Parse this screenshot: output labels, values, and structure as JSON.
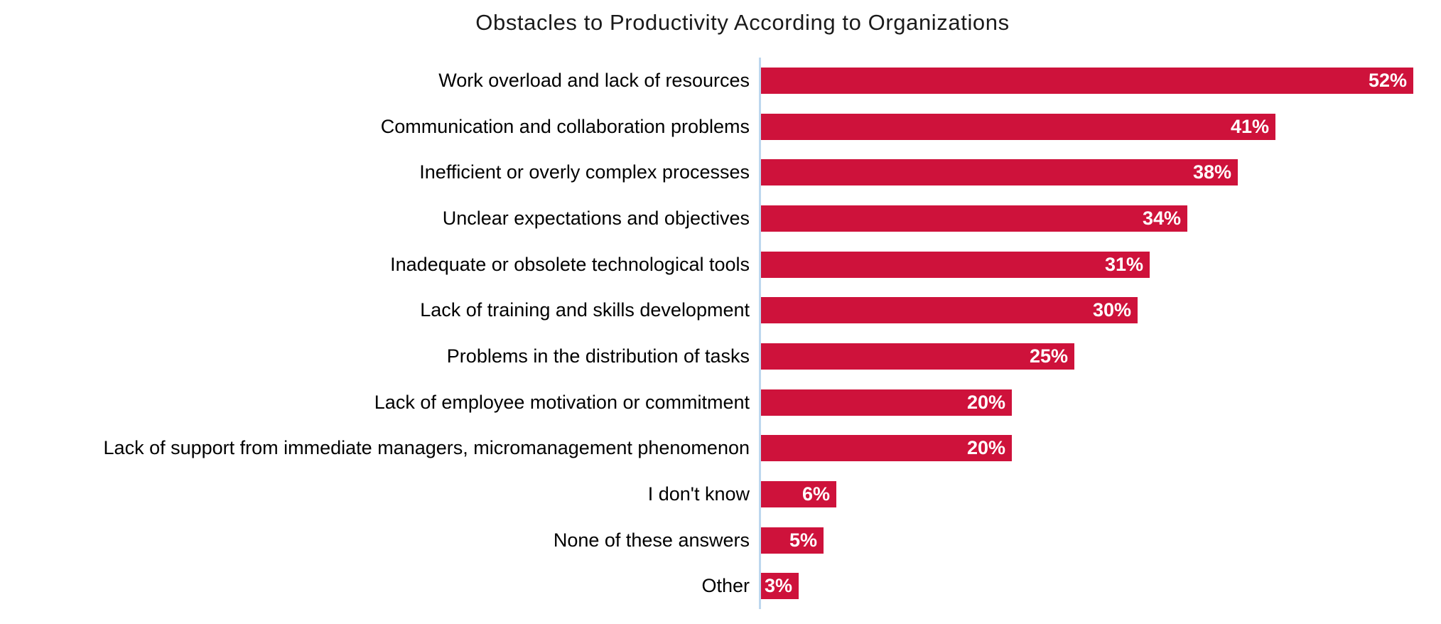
{
  "chart_data": {
    "type": "bar",
    "orientation": "horizontal",
    "title": "Obstacles to Productivity According to Organizations",
    "categories": [
      "Work overload and lack of resources",
      "Communication and collaboration problems",
      "Inefficient or overly complex processes",
      "Unclear expectations and objectives",
      "Inadequate or obsolete technological tools",
      "Lack of training and skills development",
      "Problems in the distribution of tasks",
      "Lack of employee motivation or commitment",
      "Lack of support from immediate managers, micromanagement phenomenon",
      "I don't know",
      "None of these answers",
      "Other"
    ],
    "values": [
      52,
      41,
      38,
      34,
      31,
      30,
      25,
      20,
      20,
      6,
      5,
      3
    ],
    "value_labels": [
      "52%",
      "41%",
      "38%",
      "34%",
      "31%",
      "30%",
      "25%",
      "20%",
      "20%",
      "6%",
      "5%",
      "3%"
    ],
    "xlabel": "",
    "ylabel": "",
    "xlim": [
      0,
      54
    ],
    "grid": false,
    "legend": false,
    "data_labels_position": "inside-end",
    "colors": {
      "bar": "#CE123B",
      "axis_line": "#BDD7EE",
      "value_label": "#FFFFFF",
      "category_label": "#000000",
      "title": "#1A1A1A",
      "background": "#FFFFFF"
    }
  }
}
